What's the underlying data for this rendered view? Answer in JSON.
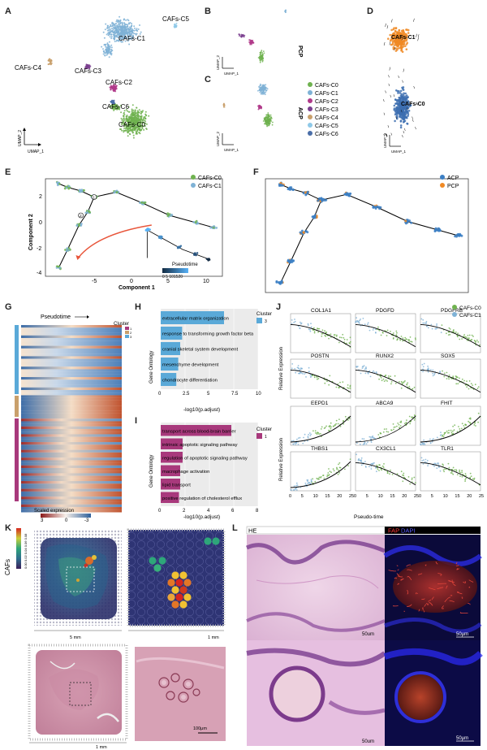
{
  "panel_letters": [
    "A",
    "B",
    "C",
    "D",
    "E",
    "F",
    "G",
    "H",
    "I",
    "J",
    "K",
    "L"
  ],
  "panelA": {
    "labels": [
      "CAFs-C5",
      "CAFs-C1",
      "CAFs-C4",
      "CAFs-C3",
      "CAFs-C2",
      "CAFs-C6",
      "CAFs-C0"
    ],
    "axis_x": "UMAP_1",
    "axis_y": "UMAP_2"
  },
  "panelBC": {
    "top_label": "PCP",
    "bottom_label": "ACP",
    "axis_x": "UMAP_1",
    "axis_y": "UMAP_2",
    "legend": [
      {
        "name": "CAFs-C0",
        "color": "#6fb24f"
      },
      {
        "name": "CAFs-C1",
        "color": "#7fb2d6"
      },
      {
        "name": "CAFs-C2",
        "color": "#b03a8a"
      },
      {
        "name": "CAFs-C3",
        "color": "#7b3f8f"
      },
      {
        "name": "CAFs-C4",
        "color": "#c9a06c"
      },
      {
        "name": "CAFs-C5",
        "color": "#8fc9e8"
      },
      {
        "name": "CAFs-C6",
        "color": "#4a6ea8"
      }
    ]
  },
  "panelD": {
    "labels": [
      "CAFs-C1",
      "CAFs-C0"
    ],
    "axis_x": "UMAP_1",
    "axis_y": "UMAP_2"
  },
  "panelE": {
    "legend": [
      {
        "name": "CAFs-C0",
        "color": "#6fb24f"
      },
      {
        "name": "CAFs-C1",
        "color": "#7fb2d6"
      }
    ],
    "xlabel": "Component 1",
    "ylabel": "Component 2",
    "yticks": [
      "2",
      "0",
      "-2",
      "-4"
    ],
    "xticks": [
      "-5",
      "0",
      "5",
      "10"
    ],
    "pseudotime_label": "Pseudotime",
    "pseudotime_ticks": "0 5 101520",
    "branch_nodes": [
      "1",
      "2"
    ]
  },
  "panelF": {
    "legend": [
      {
        "name": "ACP",
        "color": "#3b7fc4"
      },
      {
        "name": "PCP",
        "color": "#f08a24"
      }
    ]
  },
  "panelG": {
    "pseudotime": "Pseudotime",
    "cluster_title": "Cluster",
    "cluster_items": [
      "1",
      "2",
      "3"
    ],
    "scale_title": "Scaled expression",
    "scale_ticks": [
      "3",
      "0",
      "-3"
    ]
  },
  "panelH": {
    "ylabel": "Gene Ontology",
    "xlabel": "-log10(p.adjust)",
    "xticks": [
      "0",
      "2.5",
      "5",
      "7.5",
      "10"
    ],
    "cluster_title": "Cluster",
    "cluster_item": "3",
    "bar_color": "#5aa9d8",
    "xmax": 10,
    "terms": [
      {
        "label": "extracellular matrix organization",
        "value": 6.5
      },
      {
        "label": "response to transforming growth factor beta",
        "value": 2.2
      },
      {
        "label": "cranial skeletal system development",
        "value": 2.0
      },
      {
        "label": "mesenchyme development",
        "value": 1.8
      },
      {
        "label": "chondrocyte differentiation",
        "value": 1.6
      }
    ]
  },
  "panelI": {
    "ylabel": "Gene Ontology",
    "xlabel": "-log10(p.adjust)",
    "xticks": [
      "0",
      "2",
      "4",
      "6",
      "8"
    ],
    "cluster_title": "Cluster",
    "cluster_item": "1",
    "bar_color": "#a8397c",
    "xmax": 8,
    "terms": [
      {
        "label": "transport across blood-brain barrier",
        "value": 5.8
      },
      {
        "label": "intrinsic apoptotic signaling pathway",
        "value": 1.8
      },
      {
        "label": "regulation of apoptotic signaling pathway",
        "value": 1.8
      },
      {
        "label": "macrophage activation",
        "value": 1.6
      },
      {
        "label": "lipid transport",
        "value": 1.6
      },
      {
        "label": "positive regulation of cholesterol efflux",
        "value": 1.5
      }
    ]
  },
  "panelJ": {
    "legend": [
      {
        "name": "CAFs-C0",
        "color": "#6fb24f"
      },
      {
        "name": "CAFs-C1",
        "color": "#7fb2d6"
      }
    ],
    "ylabel": "Relative Expression",
    "xlabel": "Pseudo-time",
    "xticks": [
      "0",
      "5",
      "10",
      "15",
      "20",
      "25"
    ],
    "genes": [
      "COL1A1",
      "PDGFD",
      "PDGFRB",
      "POSTN",
      "RUNX2",
      "SOX5",
      "EEPD1",
      "ABCA9",
      "FHIT",
      "THBS1",
      "CX3CL1",
      "TLR1"
    ]
  },
  "panelK": {
    "ylabel": "CAFs",
    "scale_ticks": "0.00 0.02 0.04 0.06 0.08",
    "scale_a": "5 mm",
    "scale_b": "1 mm",
    "scale_c": "1 mm",
    "scale_d": "100μm"
  },
  "panelL": {
    "he": "HE",
    "fap": "FAP",
    "dapi": "DAPI",
    "s1": "50um",
    "s2": "50um",
    "s3": "50μm",
    "s4": "50μm"
  }
}
